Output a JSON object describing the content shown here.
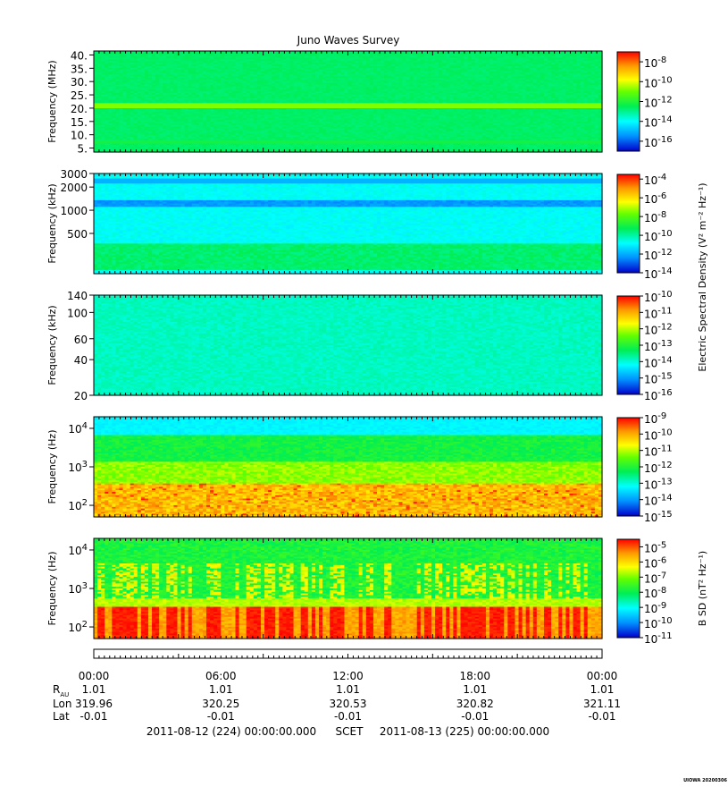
{
  "chart_data": {
    "type": "heatmap",
    "title": "Juno Waves Survey",
    "panels": [
      {
        "ylabel": "Frequency (MHz)",
        "y_scale": "linear",
        "ylim": [
          3.5,
          41.5
        ],
        "y_ticks": [
          {
            "value": 5,
            "label": "5."
          },
          {
            "value": 10,
            "label": "10."
          },
          {
            "value": 15,
            "label": "15."
          },
          {
            "value": 20,
            "label": "20."
          },
          {
            "value": 25,
            "label": "25."
          },
          {
            "value": 30,
            "label": "30."
          },
          {
            "value": 35,
            "label": "35."
          },
          {
            "value": 40,
            "label": "40."
          }
        ],
        "colorbar": {
          "scale": "log",
          "range_exp": [
            -17,
            -7
          ],
          "ticks": [
            {
              "exp": -8,
              "base": "10",
              "sup": "-8"
            },
            {
              "exp": -10,
              "base": "10",
              "sup": "-10"
            },
            {
              "exp": -12,
              "base": "10",
              "sup": "-12"
            },
            {
              "exp": -14,
              "base": "10",
              "sup": "-14"
            },
            {
              "exp": -16,
              "base": "10",
              "sup": "-16"
            }
          ]
        }
      },
      {
        "ylabel": "Frequency (kHz)",
        "y_scale": "log",
        "ylim": [
          150,
          3000
        ],
        "y_ticks": [
          {
            "value": 500,
            "label": "500"
          },
          {
            "value": 1000,
            "label": "1000"
          },
          {
            "value": 2000,
            "label": "2000"
          },
          {
            "value": 3000,
            "label": "3000"
          }
        ],
        "colorbar": {
          "scale": "log",
          "range_exp": [
            -14,
            -3.5
          ],
          "ticks": [
            {
              "exp": -4,
              "base": "10",
              "sup": "-4"
            },
            {
              "exp": -6,
              "base": "10",
              "sup": "-6"
            },
            {
              "exp": -8,
              "base": "10",
              "sup": "-8"
            },
            {
              "exp": -10,
              "base": "10",
              "sup": "-10"
            },
            {
              "exp": -12,
              "base": "10",
              "sup": "-12"
            },
            {
              "exp": -14,
              "base": "10",
              "sup": "-14"
            }
          ]
        }
      },
      {
        "ylabel": "Frequency (kHz)",
        "y_scale": "log",
        "ylim": [
          20,
          140
        ],
        "y_ticks": [
          {
            "value": 20,
            "label": "20"
          },
          {
            "value": 40,
            "label": "40"
          },
          {
            "value": 60,
            "label": "60"
          },
          {
            "value": 100,
            "label": "100"
          },
          {
            "value": 140,
            "label": "140"
          }
        ],
        "colorbar": {
          "scale": "log",
          "range_exp": [
            -16,
            -10
          ],
          "ticks": [
            {
              "exp": -10,
              "base": "10",
              "sup": "-10"
            },
            {
              "exp": -11,
              "base": "10",
              "sup": "-11"
            },
            {
              "exp": -12,
              "base": "10",
              "sup": "-12"
            },
            {
              "exp": -13,
              "base": "10",
              "sup": "-13"
            },
            {
              "exp": -14,
              "base": "10",
              "sup": "-14"
            },
            {
              "exp": -15,
              "base": "10",
              "sup": "-15"
            },
            {
              "exp": -16,
              "base": "10",
              "sup": "-16"
            }
          ]
        }
      },
      {
        "ylabel": "Frequency (Hz)",
        "y_scale": "log",
        "ylim": [
          50,
          20000
        ],
        "y_ticks": [
          {
            "value": 100,
            "label": "10",
            "sup": "2"
          },
          {
            "value": 1000,
            "label": "10",
            "sup": "3"
          },
          {
            "value": 10000,
            "label": "10",
            "sup": "4"
          }
        ],
        "colorbar": {
          "scale": "log",
          "range_exp": [
            -15,
            -9
          ],
          "ticks": [
            {
              "exp": -9,
              "base": "10",
              "sup": "-9"
            },
            {
              "exp": -10,
              "base": "10",
              "sup": "-10"
            },
            {
              "exp": -11,
              "base": "10",
              "sup": "-11"
            },
            {
              "exp": -12,
              "base": "10",
              "sup": "-12"
            },
            {
              "exp": -13,
              "base": "10",
              "sup": "-13"
            },
            {
              "exp": -14,
              "base": "10",
              "sup": "-14"
            },
            {
              "exp": -15,
              "base": "10",
              "sup": "-15"
            }
          ]
        }
      },
      {
        "ylabel": "Frequency (Hz)",
        "y_scale": "log",
        "ylim": [
          50,
          20000
        ],
        "y_ticks": [
          {
            "value": 100,
            "label": "10",
            "sup": "2"
          },
          {
            "value": 1000,
            "label": "10",
            "sup": "3"
          },
          {
            "value": 10000,
            "label": "10",
            "sup": "4"
          }
        ],
        "colorbar": {
          "scale": "log",
          "range_exp": [
            -11,
            -4.5
          ],
          "ticks": [
            {
              "exp": -5,
              "base": "10",
              "sup": "-5"
            },
            {
              "exp": -6,
              "base": "10",
              "sup": "-6"
            },
            {
              "exp": -7,
              "base": "10",
              "sup": "-7"
            },
            {
              "exp": -8,
              "base": "10",
              "sup": "-8"
            },
            {
              "exp": -9,
              "base": "10",
              "sup": "-9"
            },
            {
              "exp": -10,
              "base": "10",
              "sup": "-10"
            },
            {
              "exp": -11,
              "base": "10",
              "sup": "-11"
            }
          ]
        }
      }
    ],
    "colorbar_label_electric": "Electric Spectral Density (V² m⁻² Hz⁻¹)",
    "colorbar_label_magnetic": "B SD (nT² Hz⁻¹)",
    "x_ticks": [
      "00:00",
      "06:00",
      "12:00",
      "18:00",
      "00:00"
    ],
    "ephemeris": [
      {
        "label": "R",
        "label_sub": "AU",
        "values": [
          "1.01",
          "1.01",
          "1.01",
          "1.01",
          "1.01"
        ]
      },
      {
        "label": "Lon",
        "values": [
          "319.96",
          "320.25",
          "320.53",
          "320.82",
          "321.11"
        ]
      },
      {
        "label": "Lat",
        "values": [
          "-0.01",
          "-0.01",
          "-0.01",
          "-0.01",
          "-0.01"
        ]
      }
    ],
    "time_range_start": "2011-08-12 (224) 00:00:00.000",
    "time_system": "SCET",
    "time_range_end": "2011-08-13 (225) 00:00:00.000",
    "stamp": "UIOWA 20200306"
  }
}
